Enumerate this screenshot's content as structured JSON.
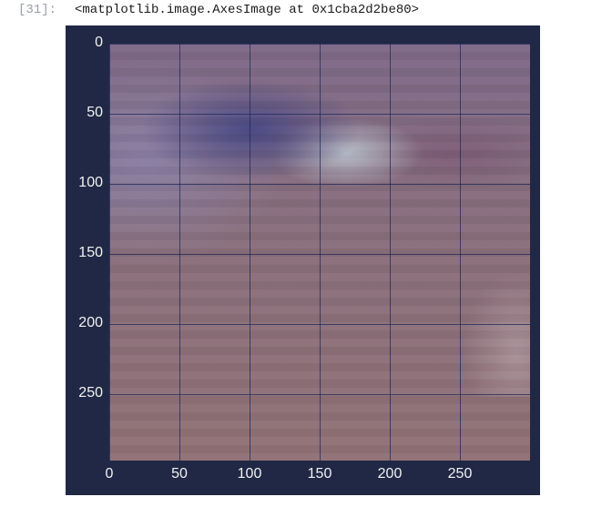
{
  "cell": {
    "prompt": "[31]:",
    "output_text": "<matplotlib.image.AxesImage at 0x1cba2d2be80>"
  },
  "chart_data": {
    "type": "heatmap",
    "title": "",
    "xlabel": "",
    "ylabel": "",
    "xlim": [
      0,
      300
    ],
    "ylim": [
      300,
      0
    ],
    "x_ticks": [
      "0",
      "50",
      "100",
      "150",
      "200",
      "250"
    ],
    "y_ticks": [
      "0",
      "50",
      "100",
      "150",
      "200",
      "250"
    ],
    "grid": true
  },
  "colors": {
    "figure_background": "#202845",
    "tick_label": "#f2f2f2",
    "prompt": "#9aa0a6"
  }
}
